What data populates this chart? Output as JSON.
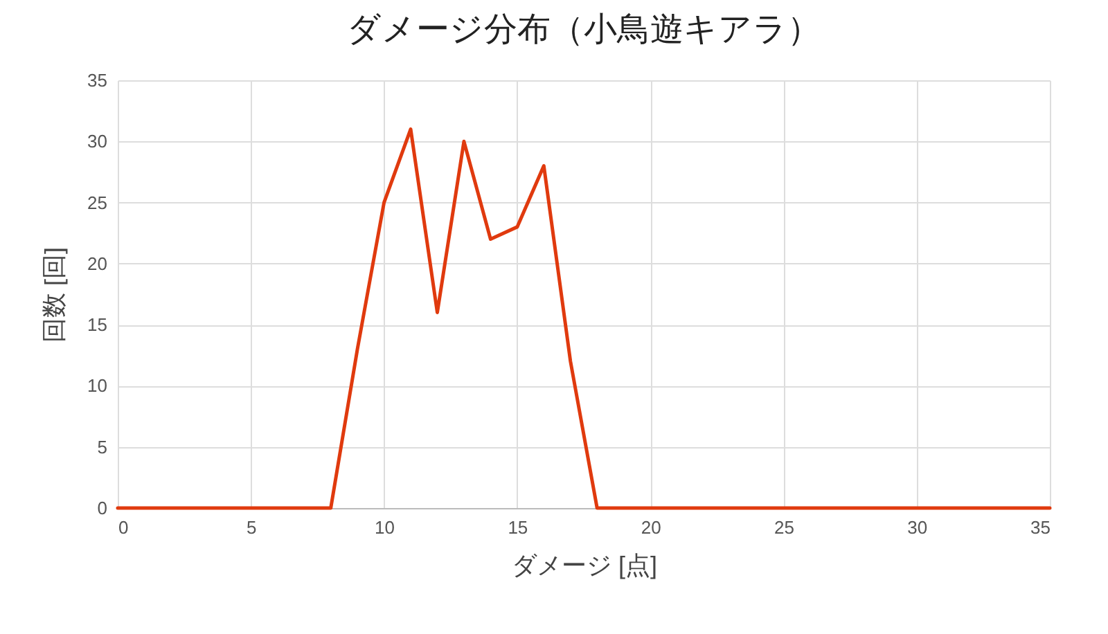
{
  "chart_data": {
    "type": "line",
    "title": "ダメージ分布（小鳥遊キアラ）",
    "xlabel": "ダメージ [点]",
    "ylabel": "回数 [回]",
    "x": [
      0,
      1,
      2,
      3,
      4,
      5,
      6,
      7,
      8,
      9,
      10,
      11,
      12,
      13,
      14,
      15,
      16,
      17,
      18,
      19,
      20,
      21,
      22,
      23,
      24,
      25,
      26,
      27,
      28,
      29,
      30,
      31,
      32,
      33,
      34,
      35
    ],
    "series": [
      {
        "color": "#e03a0e",
        "values": [
          0,
          0,
          0,
          0,
          0,
          0,
          0,
          0,
          0,
          13,
          25,
          31,
          16,
          30,
          22,
          23,
          28,
          12,
          0,
          0,
          0,
          0,
          0,
          0,
          0,
          0,
          0,
          0,
          0,
          0,
          0,
          0,
          0,
          0,
          0,
          0
        ]
      }
    ],
    "xlim": [
      0,
      35
    ],
    "xticks": [
      0,
      5,
      10,
      15,
      20,
      25,
      30,
      35
    ],
    "ylim": [
      0,
      35
    ],
    "yticks": [
      0,
      5,
      10,
      15,
      20,
      25,
      30,
      35
    ],
    "grid": true,
    "marker": "none",
    "line_style": "solid"
  }
}
